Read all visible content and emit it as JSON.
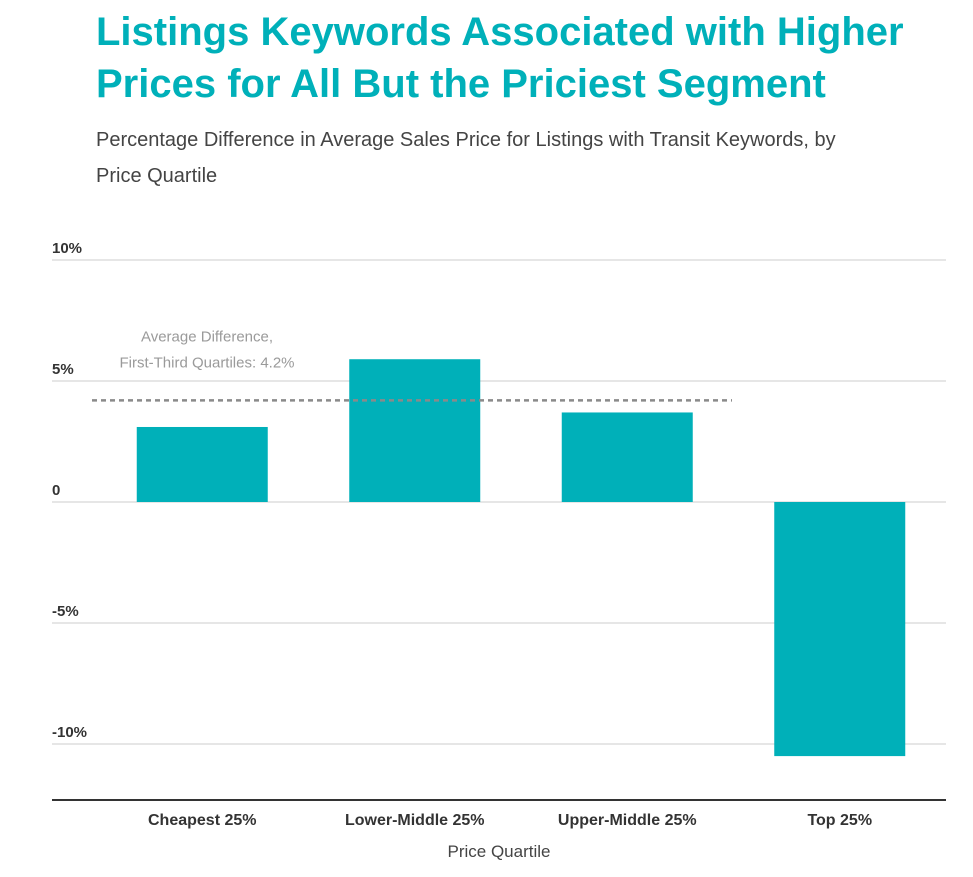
{
  "header": {
    "title": "Listings Keywords Associated with Higher Prices for All But the Priciest Segment",
    "subtitle": "Percentage Difference in Average Sales Price for Listings with Transit Keywords, by Price Quartile"
  },
  "colors": {
    "bar": "#00b0b9",
    "title": "#00b0b9",
    "gridline": "#dddddd",
    "baseline": "#333333",
    "reference_line": "#8a8a8a",
    "annotation": "#9a9a9a"
  },
  "chart_data": {
    "type": "bar",
    "title": "Listings Keywords Associated with Higher Prices for All But the Priciest Segment",
    "subtitle": "Percentage Difference in Average Sales Price for Listings with Transit Keywords, by Price Quartile",
    "xlabel": "Price Quartile",
    "ylabel": "",
    "categories": [
      "Cheapest 25%",
      "Lower-Middle 25%",
      "Upper-Middle 25%",
      "Top 25%"
    ],
    "values": [
      3.1,
      5.9,
      3.7,
      -10.5
    ],
    "ylim": [
      -12,
      10
    ],
    "yticks": [
      {
        "value": 10,
        "label": "10%"
      },
      {
        "value": 5,
        "label": "5%"
      },
      {
        "value": 0,
        "label": "0"
      },
      {
        "value": -5,
        "label": "-5%"
      },
      {
        "value": -10,
        "label": "-10%"
      }
    ],
    "grid": true,
    "legend": "none",
    "reference_line": {
      "value": 4.2,
      "style": "dashed",
      "label_line1": "Average Difference,",
      "label_line2": "First-Third Quartiles: 4.2%"
    }
  }
}
